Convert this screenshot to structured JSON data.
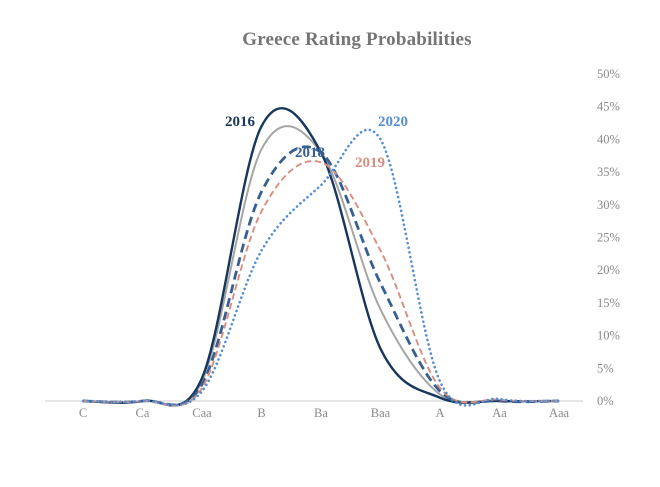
{
  "title": "Greece Rating Probabilities",
  "chart_data": {
    "type": "line",
    "title": "Greece Rating Probabilities",
    "subtitle": "",
    "xlabel": "",
    "ylabel": "",
    "categories": [
      "C",
      "Ca",
      "Caa",
      "B",
      "Ba",
      "Baa",
      "A",
      "Aa",
      "Aaa"
    ],
    "series": [
      {
        "label": "2016",
        "color": "#17375E",
        "line_style": "solid",
        "values": [
          0,
          0,
          3.5,
          42,
          38,
          8,
          0.5,
          0,
          0
        ]
      },
      {
        "label": null,
        "color": "#A6A6A6",
        "line_style": "solid",
        "values": [
          0,
          0,
          3.0,
          38.5,
          38,
          14,
          1,
          0,
          0
        ]
      },
      {
        "label": "2018",
        "color": "#376092",
        "line_style": "dashed",
        "values": [
          0,
          0,
          2.5,
          32,
          38,
          18,
          1.5,
          0,
          0
        ]
      },
      {
        "label": "2019",
        "color": "#D98E7D",
        "line_style": "dashed-thin",
        "values": [
          0,
          0,
          2.0,
          29,
          36.5,
          23,
          2,
          0.2,
          0
        ]
      },
      {
        "label": "2020",
        "color": "#558ED5",
        "line_style": "dotted",
        "values": [
          0,
          0,
          1.5,
          23,
          33,
          40,
          3,
          0.3,
          0
        ]
      }
    ],
    "ylim": [
      0,
      50
    ],
    "y_tick_step": 5,
    "y_tick_labels": [
      "0%",
      "5%",
      "10%",
      "15%",
      "20%",
      "25%",
      "30%",
      "35%",
      "40%",
      "45%",
      "50%"
    ],
    "y_axis_side": "right",
    "grid": false,
    "legend": "inline-colored-year-labels",
    "smoothing": true,
    "axis_line_color": "#D8D8D8",
    "tick_label_color": "#8A8A8A",
    "title_color": "#757575"
  }
}
